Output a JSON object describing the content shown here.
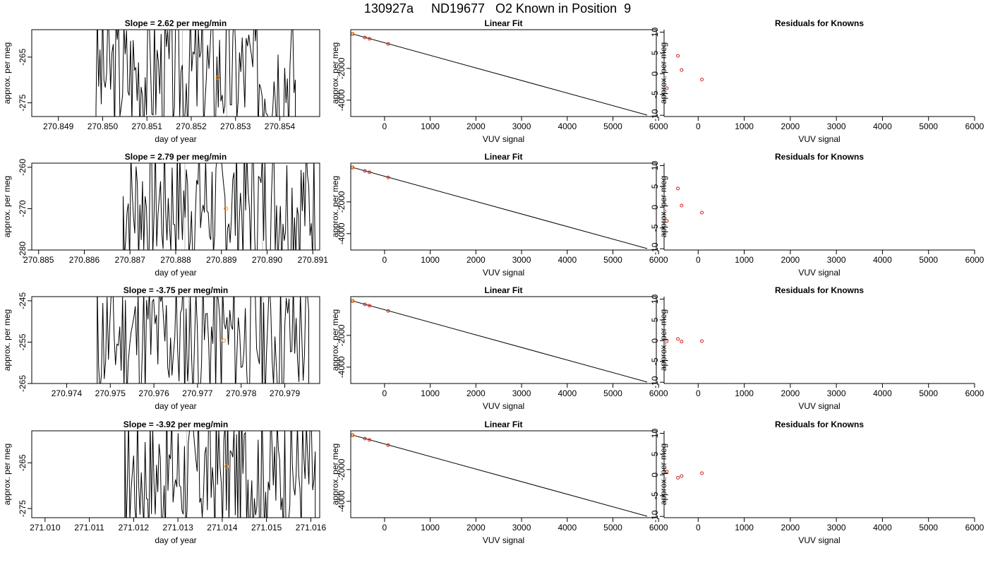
{
  "title": "130927a     ND19677   O2 Known in Position  9",
  "colors": {
    "axes": "#000000",
    "series": "#000000",
    "highlight": "#ff8c00",
    "residual": "#cc2222",
    "vline": "#bfbfbf"
  },
  "rows": [
    {
      "time": {
        "title": "Slope =  2.62  per meg/min",
        "xlabel": "day of year",
        "ylabel": "approx. per meg",
        "xlim": [
          270.8484,
          270.8549
        ],
        "ylim": [
          -278,
          -259
        ],
        "xticks": [
          "270.849",
          "270.850",
          "270.851",
          "270.852",
          "270.853",
          "270.854"
        ],
        "yticks": [
          "-265",
          "-275"
        ],
        "mark": [
          270.8526,
          -269.5
        ],
        "vlines": [
          270.8518,
          270.8528
        ],
        "start": 270.84985,
        "end": 270.85435,
        "seed": 3
      },
      "fit": {
        "title": "Linear Fit",
        "xlabel": "VUV signal",
        "ylabel": "approx. per meg",
        "xlim": [
          -740,
          5950
        ],
        "ylim": [
          -5030,
          440
        ],
        "xticks": [
          "0",
          "1000",
          "2000",
          "3000",
          "4000",
          "5000",
          "6000"
        ],
        "yticks": [
          "-2000",
          "-4000"
        ],
        "line": [
          [
            -700,
            170
          ],
          [
            5750,
            -4940
          ]
        ],
        "points": [
          [
            -700,
            170
          ],
          [
            -430,
            -50
          ],
          [
            -330,
            -130
          ],
          [
            80,
            -460
          ]
        ],
        "highlight": [
          [
            -700,
            170
          ]
        ]
      },
      "resid": {
        "title": "Residuals for Knowns",
        "xlabel": "VUV signal",
        "xlim": [
          -740,
          6000
        ],
        "ylim": [
          -10.3,
          10.6
        ],
        "xticks": [
          "0",
          "1000",
          "2000",
          "3000",
          "4000",
          "5000",
          "6000"
        ],
        "yticks": [
          "10",
          "5",
          "0",
          "-5",
          "-10"
        ],
        "points": [
          [
            -680,
            -3.5
          ],
          [
            -440,
            4.3
          ],
          [
            -360,
            0.9
          ],
          [
            80,
            -1.4
          ]
        ]
      }
    },
    {
      "time": {
        "title": "Slope =  2.79  per meg/min",
        "xlabel": "day of year",
        "ylabel": "approx. per meg",
        "xlim": [
          270.88485,
          270.89115
        ],
        "ylim": [
          -280,
          -259
        ],
        "xticks": [
          "270.885",
          "270.886",
          "270.887",
          "270.888",
          "270.889",
          "270.890",
          "270.891"
        ],
        "yticks": [
          "-260",
          "-270",
          "-280"
        ],
        "mark": [
          270.8891,
          -270
        ],
        "vlines": [
          270.8882,
          270.8899
        ],
        "start": 270.88685,
        "end": 270.89108,
        "seed": 7
      },
      "fit": {
        "title": "Linear Fit",
        "xlabel": "VUV signal",
        "ylabel": "approx. per meg",
        "xlim": [
          -740,
          5950
        ],
        "ylim": [
          -5030,
          440
        ],
        "xticks": [
          "0",
          "1000",
          "2000",
          "3000",
          "4000",
          "5000",
          "6000"
        ],
        "yticks": [
          "-2000",
          "-4000"
        ],
        "line": [
          [
            -700,
            170
          ],
          [
            5750,
            -4940
          ]
        ],
        "points": [
          [
            -700,
            170
          ],
          [
            -430,
            -50
          ],
          [
            -330,
            -130
          ],
          [
            80,
            -460
          ]
        ],
        "highlight": [
          [
            -700,
            170
          ]
        ]
      },
      "resid": {
        "title": "Residuals for Knowns",
        "xlabel": "VUV signal",
        "xlim": [
          -740,
          6000
        ],
        "ylim": [
          -10.3,
          10.6
        ],
        "xticks": [
          "0",
          "1000",
          "2000",
          "3000",
          "4000",
          "5000",
          "6000"
        ],
        "yticks": [
          "10",
          "5",
          "0",
          "-5",
          "-10"
        ],
        "points": [
          [
            -680,
            -3.3
          ],
          [
            -440,
            4.5
          ],
          [
            -360,
            0.4
          ],
          [
            80,
            -1.3
          ]
        ]
      }
    },
    {
      "time": {
        "title": "Slope =  -3.75  per meg/min",
        "xlabel": "day of year",
        "ylabel": "approx. per meg",
        "xlim": [
          270.9732,
          270.9798
        ],
        "ylim": [
          -265,
          -244
        ],
        "xticks": [
          "270.974",
          "270.975",
          "270.976",
          "270.977",
          "270.978",
          "270.979"
        ],
        "yticks": [
          "-245",
          "-255",
          "-265"
        ],
        "mark": [
          270.9776,
          -254.6
        ],
        "vlines": [
          270.9768,
          270.97755,
          270.9785
        ],
        "start": 270.9747,
        "end": 270.97955,
        "seed": 11
      },
      "fit": {
        "title": "Linear Fit",
        "xlabel": "VUV signal",
        "ylabel": "approx. per meg",
        "xlim": [
          -740,
          5950
        ],
        "ylim": [
          -5030,
          440
        ],
        "xticks": [
          "0",
          "1000",
          "2000",
          "3000",
          "4000",
          "5000",
          "6000"
        ],
        "yticks": [
          "-2000",
          "-4000"
        ],
        "line": [
          [
            -700,
            170
          ],
          [
            5750,
            -4940
          ]
        ],
        "points": [
          [
            -700,
            170
          ],
          [
            -430,
            -50
          ],
          [
            -330,
            -130
          ],
          [
            80,
            -460
          ]
        ],
        "highlight": [
          [
            -700,
            170
          ]
        ]
      },
      "resid": {
        "title": "Residuals for Knowns",
        "xlabel": "VUV signal",
        "xlim": [
          -740,
          6000
        ],
        "ylim": [
          -10.3,
          10.6
        ],
        "xticks": [
          "0",
          "1000",
          "2000",
          "3000",
          "4000",
          "5000",
          "6000"
        ],
        "yticks": [
          "10",
          "5",
          "0",
          "-5",
          "-10"
        ],
        "points": [
          [
            -680,
            -0.1
          ],
          [
            -440,
            0.4
          ],
          [
            -360,
            -0.2
          ],
          [
            80,
            -0.1
          ]
        ]
      }
    },
    {
      "time": {
        "title": "Slope =  -3.92  per meg/min",
        "xlabel": "day of year",
        "ylabel": "approx. per meg",
        "xlim": [
          271.0097,
          271.0162
        ],
        "ylim": [
          -277,
          -258
        ],
        "xticks": [
          "271.010",
          "271.011",
          "271.012",
          "271.013",
          "271.014",
          "271.015",
          "271.016"
        ],
        "yticks": [
          "-265",
          "-275"
        ],
        "mark": [
          271.0141,
          -265.8
        ],
        "vlines": [
          271.0132,
          271.0149
        ],
        "start": 271.0118,
        "end": 271.0161,
        "seed": 17
      },
      "fit": {
        "title": "Linear Fit",
        "xlabel": "VUV signal",
        "ylabel": "approx. per meg",
        "xlim": [
          -740,
          5950
        ],
        "ylim": [
          -5030,
          440
        ],
        "xticks": [
          "0",
          "1000",
          "2000",
          "3000",
          "4000",
          "5000",
          "6000"
        ],
        "yticks": [
          "-2000",
          "-4000"
        ],
        "line": [
          [
            -700,
            170
          ],
          [
            5750,
            -4940
          ]
        ],
        "points": [
          [
            -700,
            170
          ],
          [
            -430,
            -50
          ],
          [
            -330,
            -130
          ],
          [
            80,
            -460
          ]
        ],
        "highlight": [
          [
            -700,
            170
          ]
        ]
      },
      "resid": {
        "title": "Residuals for Knowns",
        "xlabel": "VUV signal",
        "xlim": [
          -740,
          6000
        ],
        "ylim": [
          -10.3,
          10.6
        ],
        "xticks": [
          "0",
          "1000",
          "2000",
          "3000",
          "4000",
          "5000",
          "6000"
        ],
        "yticks": [
          "10",
          "5",
          "0",
          "-5",
          "-10"
        ],
        "points": [
          [
            -680,
            0.8
          ],
          [
            -440,
            -0.7
          ],
          [
            -360,
            -0.3
          ],
          [
            80,
            0.4
          ]
        ]
      }
    }
  ],
  "chart_data": [
    {
      "type": "line",
      "title": "Slope =  2.62  per meg/min",
      "xlabel": "day of year",
      "ylabel": "approx. per meg",
      "xlim": [
        270.8484,
        270.8549
      ],
      "ylim": [
        -278,
        -259
      ]
    },
    {
      "type": "scatter",
      "title": "Linear Fit",
      "xlabel": "VUV signal",
      "ylabel": "approx. per meg",
      "x": [
        -700,
        -430,
        -330,
        80
      ],
      "y": [
        170,
        -50,
        -130,
        -460
      ],
      "fit_line": [
        [
          -700,
          170
        ],
        [
          5750,
          -4940
        ]
      ]
    },
    {
      "type": "scatter",
      "title": "Residuals for Knowns",
      "xlabel": "VUV signal",
      "x": [
        -680,
        -440,
        -360,
        80
      ],
      "y": [
        -3.5,
        4.3,
        0.9,
        -1.4
      ]
    },
    {
      "type": "line",
      "title": "Slope =  2.79  per meg/min",
      "xlabel": "day of year",
      "ylabel": "approx. per meg",
      "xlim": [
        270.88485,
        270.89115
      ],
      "ylim": [
        -280,
        -259
      ]
    },
    {
      "type": "scatter",
      "title": "Linear Fit",
      "xlabel": "VUV signal",
      "ylabel": "approx. per meg",
      "x": [
        -700,
        -430,
        -330,
        80
      ],
      "y": [
        170,
        -50,
        -130,
        -460
      ],
      "fit_line": [
        [
          -700,
          170
        ],
        [
          5750,
          -4940
        ]
      ]
    },
    {
      "type": "scatter",
      "title": "Residuals for Knowns",
      "xlabel": "VUV signal",
      "x": [
        -680,
        -440,
        -360,
        80
      ],
      "y": [
        -3.3,
        4.5,
        0.4,
        -1.3
      ]
    },
    {
      "type": "line",
      "title": "Slope =  -3.75  per meg/min",
      "xlabel": "day of year",
      "ylabel": "approx. per meg",
      "xlim": [
        270.9732,
        270.9798
      ],
      "ylim": [
        -265,
        -244
      ]
    },
    {
      "type": "scatter",
      "title": "Linear Fit",
      "xlabel": "VUV signal",
      "ylabel": "approx. per meg",
      "x": [
        -700,
        -430,
        -330,
        80
      ],
      "y": [
        170,
        -50,
        -130,
        -460
      ],
      "fit_line": [
        [
          -700,
          170
        ],
        [
          5750,
          -4940
        ]
      ]
    },
    {
      "type": "scatter",
      "title": "Residuals for Knowns",
      "xlabel": "VUV signal",
      "x": [
        -680,
        -440,
        -360,
        80
      ],
      "y": [
        -0.1,
        0.4,
        -0.2,
        -0.1
      ]
    },
    {
      "type": "line",
      "title": "Slope =  -3.92  per meg/min",
      "xlabel": "day of year",
      "ylabel": "approx. per meg",
      "xlim": [
        271.0097,
        271.0162
      ],
      "ylim": [
        -277,
        -258
      ]
    },
    {
      "type": "scatter",
      "title": "Linear Fit",
      "xlabel": "VUV signal",
      "ylabel": "approx. per meg",
      "x": [
        -700,
        -430,
        -330,
        80
      ],
      "y": [
        170,
        -50,
        -130,
        -460
      ],
      "fit_line": [
        [
          -700,
          170
        ],
        [
          5750,
          -4940
        ]
      ]
    },
    {
      "type": "scatter",
      "title": "Residuals for Knowns",
      "xlabel": "VUV signal",
      "x": [
        -680,
        -440,
        -360,
        80
      ],
      "y": [
        0.8,
        -0.7,
        -0.3,
        0.4
      ]
    }
  ]
}
